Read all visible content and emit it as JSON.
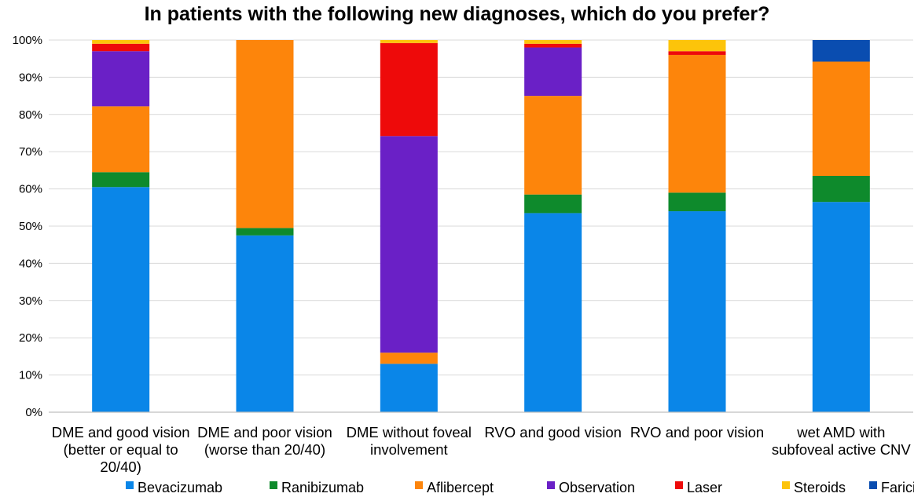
{
  "chart_data": {
    "type": "bar",
    "stacked": true,
    "title": "In patients with the following new diagnoses, which do you prefer?",
    "categories": [
      [
        "DME and good vision",
        "(better or equal to",
        "20/40)"
      ],
      [
        "DME and poor vision",
        "(worse than 20/40)"
      ],
      [
        "DME without foveal",
        "involvement"
      ],
      [
        "RVO and good vision"
      ],
      [
        "RVO and poor vision"
      ],
      [
        "wet AMD with",
        "subfoveal active CNV"
      ]
    ],
    "ylim": [
      0,
      100
    ],
    "yticks": [
      "0%",
      "10%",
      "20%",
      "30%",
      "40%",
      "50%",
      "60%",
      "70%",
      "80%",
      "90%",
      "100%"
    ],
    "grid": true,
    "legend_position": "bottom",
    "series": [
      {
        "name": "Bevacizumab",
        "color": "#0a86e8",
        "values": [
          60.5,
          47.5,
          13.0,
          53.5,
          54.0,
          56.5
        ]
      },
      {
        "name": "Ranibizumab",
        "color": "#0e8a2c",
        "values": [
          4.0,
          2.0,
          0.0,
          5.0,
          5.0,
          7.0
        ]
      },
      {
        "name": "Aflibercept",
        "color": "#fd850b",
        "values": [
          17.7,
          50.5,
          3.0,
          26.5,
          37.0,
          30.7
        ]
      },
      {
        "name": "Observation",
        "color": "#6a20c6",
        "values": [
          14.8,
          0.0,
          58.2,
          13.0,
          0.0,
          0.0
        ]
      },
      {
        "name": "Laser",
        "color": "#ee0a0a",
        "values": [
          2.0,
          0.0,
          25.0,
          1.0,
          1.0,
          0.0
        ]
      },
      {
        "name": "Steroids",
        "color": "#fdc40a",
        "values": [
          1.0,
          0.0,
          0.8,
          1.0,
          3.0,
          0.0
        ]
      },
      {
        "name": "Faricimab",
        "color": "#0a4db0",
        "values": [
          0.0,
          0.0,
          0.0,
          0.0,
          0.0,
          5.8
        ]
      }
    ]
  }
}
